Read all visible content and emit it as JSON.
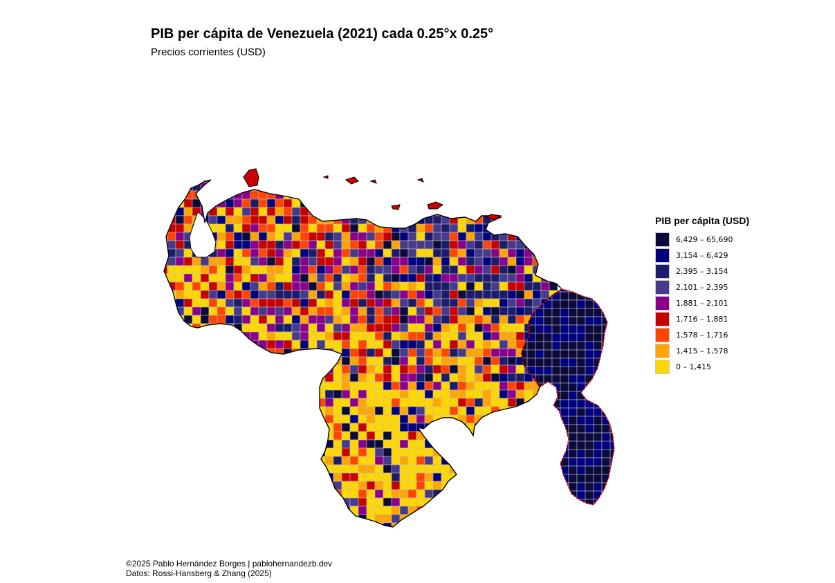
{
  "title": "PIB per cápita de Venezuela (2021) cada 0.25°x 0.25°",
  "subtitle": "Precios corrientes (USD)",
  "legend": {
    "title": "PIB per cápita (USD)",
    "classes": [
      {
        "label": "6,429 – 65,690",
        "color": "#0b0a3b"
      },
      {
        "label": "3,154 – 6,429",
        "color": "#00007f"
      },
      {
        "label": "2,395 – 3,154",
        "color": "#1c1c6c"
      },
      {
        "label": "2,101 – 2,395",
        "color": "#463a8c"
      },
      {
        "label": "1,881 – 2,101",
        "color": "#8b008b"
      },
      {
        "label": "1,716 – 1,881",
        "color": "#c80000"
      },
      {
        "label": "1,578 – 1,716",
        "color": "#ff4500"
      },
      {
        "label": "1,415 – 1,578",
        "color": "#ffa500"
      },
      {
        "label": "0 – 1,415",
        "color": "#ffd700"
      }
    ]
  },
  "caption": {
    "line1": "©2025 Pablo Hernández Borges | pablohernandezb.dev",
    "line2": "Datos: Rossi-Hansberg & Zhang (2025)"
  },
  "map": {
    "region": "Venezuela",
    "grid_resolution_deg": 0.25,
    "gridline_color": "#bebebe",
    "border_color": "#000000",
    "disputed_border_color": "#ff0000"
  }
}
